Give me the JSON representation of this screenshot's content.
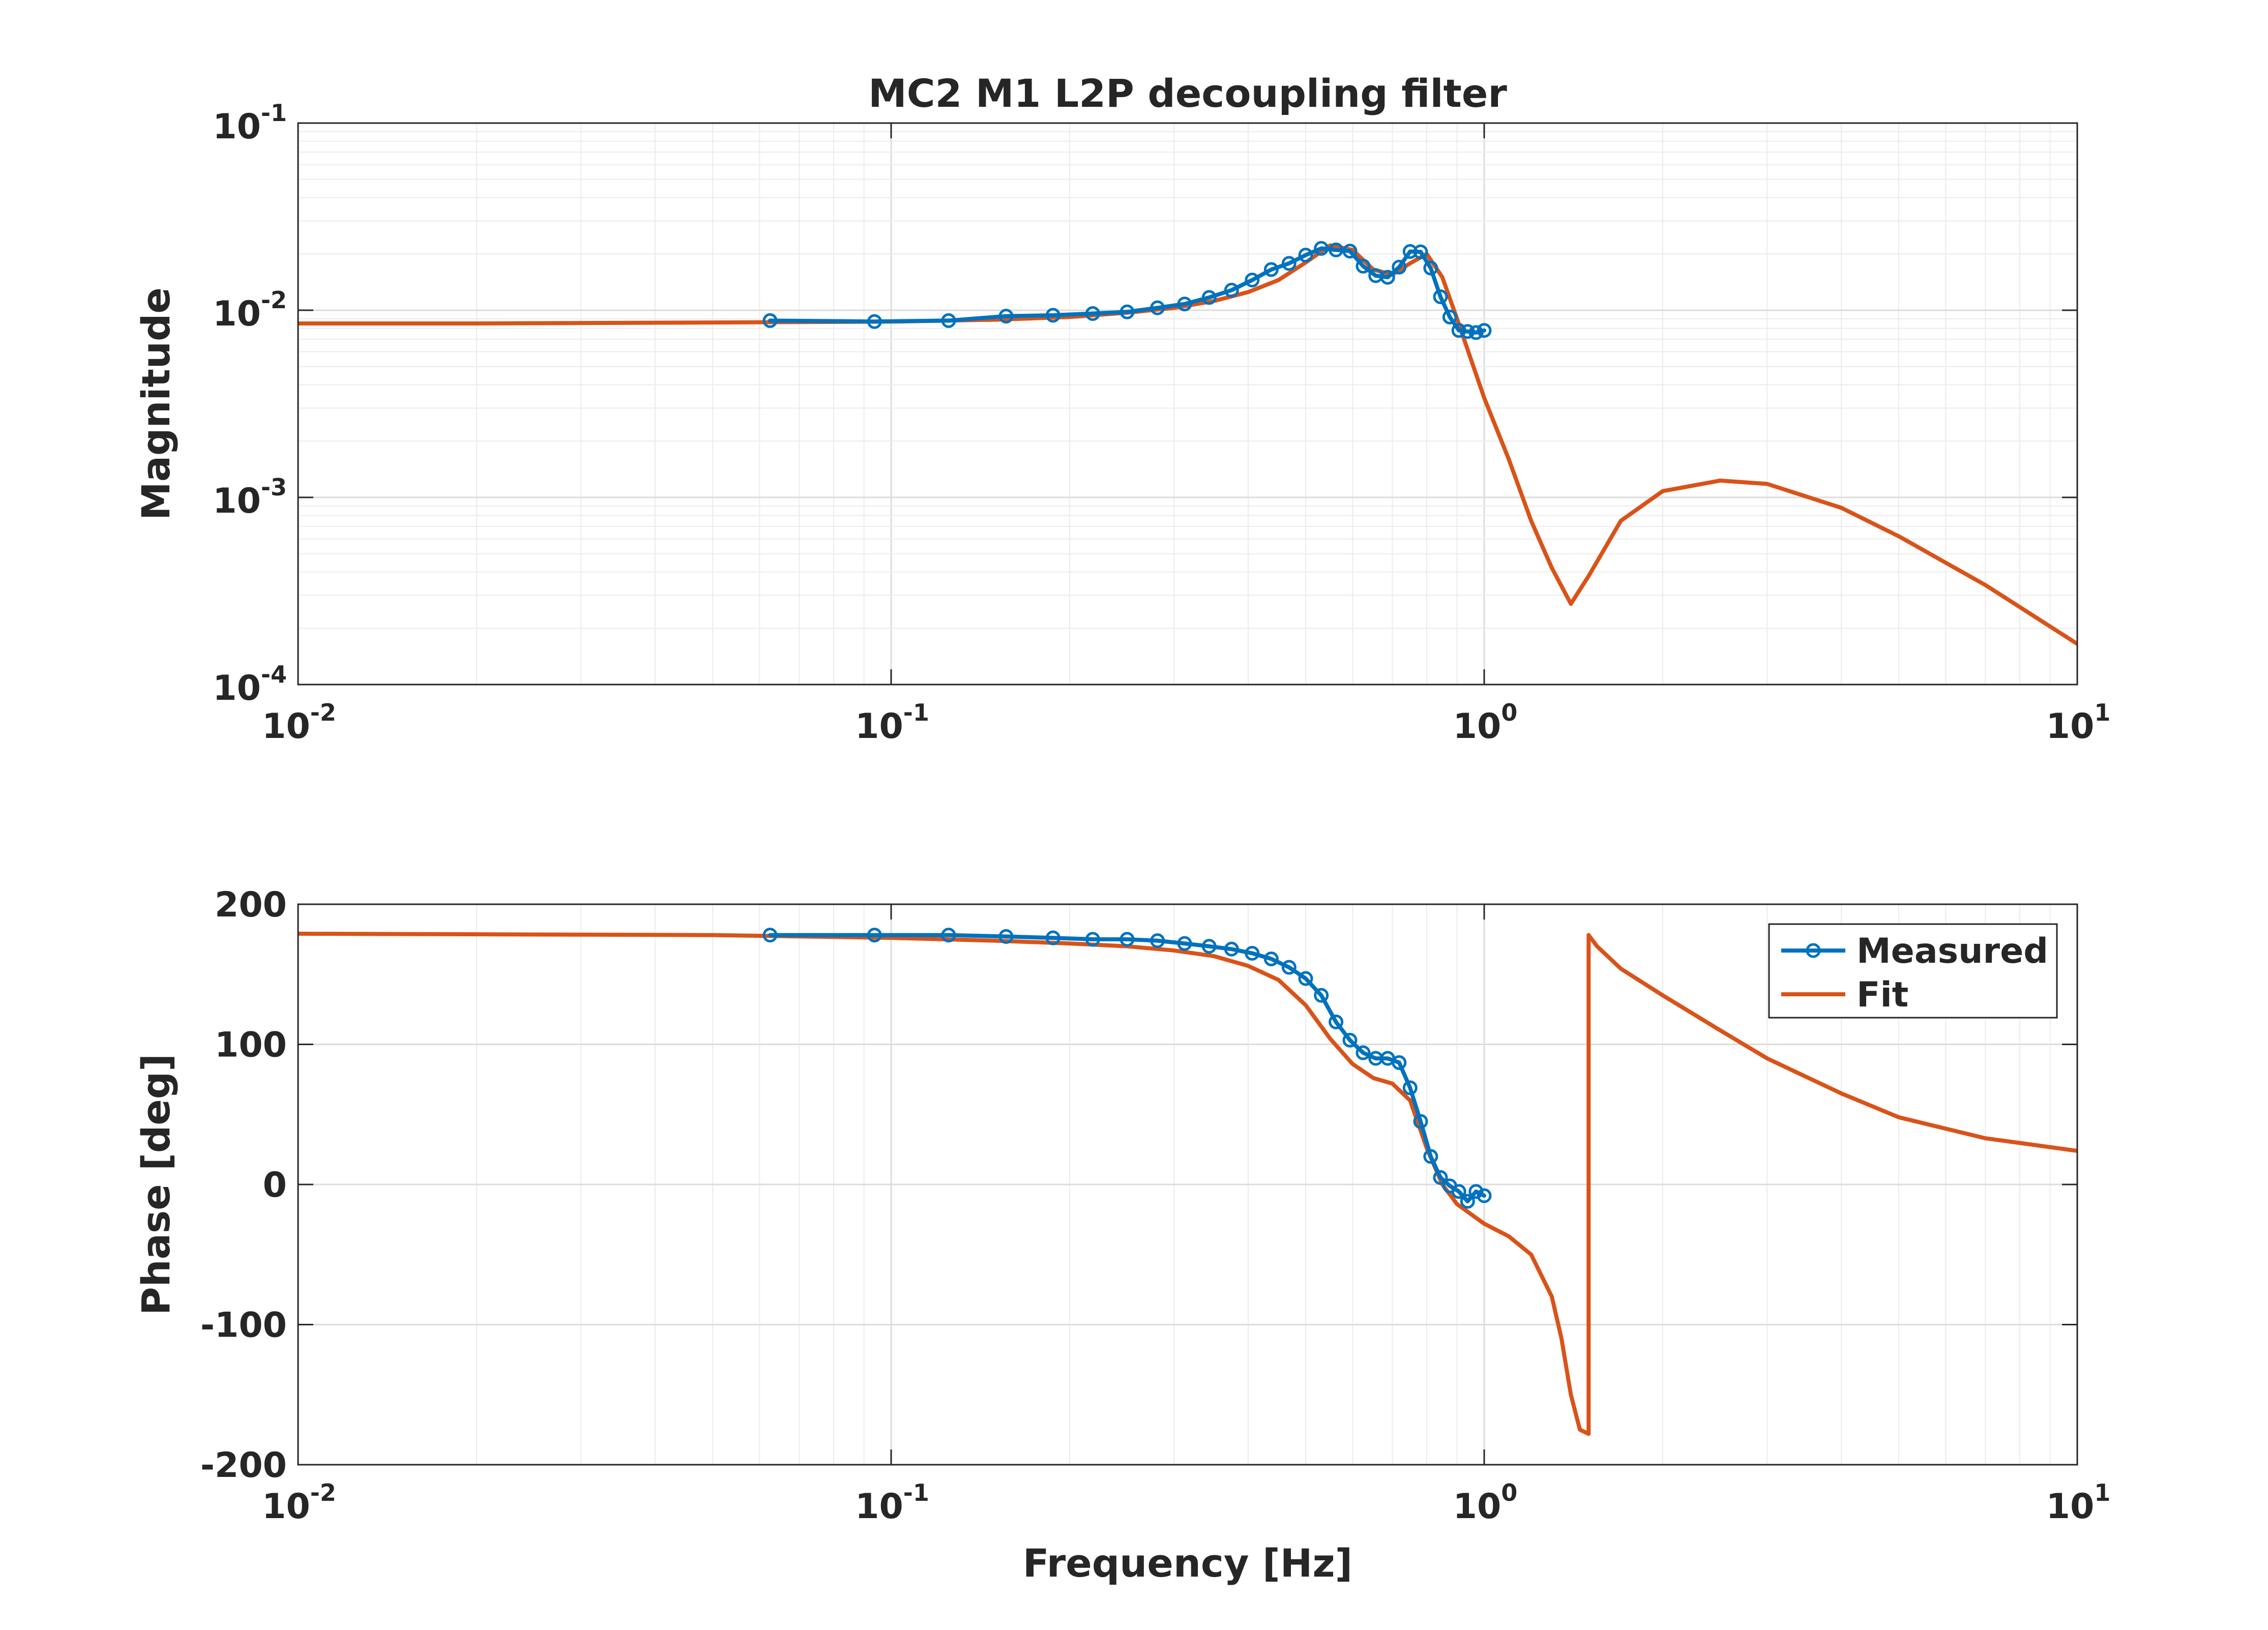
{
  "chart_data": [
    {
      "type": "line",
      "title": "MC2 M1 L2P decoupling filter",
      "xlabel": "",
      "ylabel": "Magnitude",
      "xscale": "log",
      "yscale": "log",
      "xlim": [
        0.01,
        10
      ],
      "ylim": [
        0.0001,
        0.1
      ],
      "xticks": [
        {
          "base": "10",
          "exp": "-2",
          "value": 0.01
        },
        {
          "base": "10",
          "exp": "-1",
          "value": 0.1
        },
        {
          "base": "10",
          "exp": "0",
          "value": 1
        },
        {
          "base": "10",
          "exp": "1",
          "value": 10
        }
      ],
      "yticks": [
        {
          "base": "10",
          "exp": "-4",
          "value": 0.0001
        },
        {
          "base": "10",
          "exp": "-3",
          "value": 0.001
        },
        {
          "base": "10",
          "exp": "-2",
          "value": 0.01
        },
        {
          "base": "10",
          "exp": "-1",
          "value": 0.1
        }
      ],
      "grid": true,
      "series": [
        {
          "name": "Measured",
          "color": "#0072bd",
          "marker": "circle",
          "x": [
            0.0625,
            0.09375,
            0.125,
            0.15625,
            0.1875,
            0.21875,
            0.25,
            0.28125,
            0.3125,
            0.34375,
            0.375,
            0.40625,
            0.4375,
            0.46875,
            0.5,
            0.53125,
            0.5625,
            0.59375,
            0.625,
            0.65625,
            0.6875,
            0.71875,
            0.75,
            0.78125,
            0.8125,
            0.84375,
            0.875,
            0.90625,
            0.9375,
            0.96875,
            1.0
          ],
          "y": [
            0.0088,
            0.0087,
            0.0088,
            0.0093,
            0.0094,
            0.0096,
            0.0098,
            0.0103,
            0.0108,
            0.0117,
            0.0128,
            0.0145,
            0.0165,
            0.0178,
            0.0197,
            0.0214,
            0.021,
            0.0207,
            0.0172,
            0.0153,
            0.015,
            0.017,
            0.0206,
            0.0205,
            0.0168,
            0.0118,
            0.0092,
            0.0078,
            0.0077,
            0.0076,
            0.0078
          ]
        },
        {
          "name": "Fit",
          "color": "#d95319",
          "x": [
            0.01,
            0.02,
            0.05,
            0.1,
            0.15,
            0.2,
            0.25,
            0.3,
            0.35,
            0.4,
            0.45,
            0.5,
            0.55,
            0.6,
            0.65,
            0.7,
            0.75,
            0.8,
            0.85,
            0.9,
            1.0,
            1.1,
            1.2,
            1.3,
            1.4,
            1.5,
            1.7,
            2.0,
            2.5,
            3.0,
            4.0,
            5.0,
            7.0,
            10.0
          ],
          "y": [
            0.0085,
            0.0085,
            0.0086,
            0.0087,
            0.0089,
            0.0092,
            0.0097,
            0.0103,
            0.0112,
            0.0125,
            0.0145,
            0.018,
            0.0222,
            0.021,
            0.0165,
            0.0155,
            0.0178,
            0.02,
            0.015,
            0.009,
            0.0034,
            0.0016,
            0.00075,
            0.00042,
            0.00027,
            0.00038,
            0.00075,
            0.00108,
            0.00123,
            0.00118,
            0.00088,
            0.00062,
            0.00034,
            0.000165
          ]
        }
      ]
    },
    {
      "type": "line",
      "title": "",
      "xlabel": "Frequency [Hz]",
      "ylabel": "Phase [deg]",
      "xscale": "log",
      "yscale": "linear",
      "xlim": [
        0.01,
        10
      ],
      "ylim": [
        -200,
        200
      ],
      "xticks": [
        {
          "base": "10",
          "exp": "-2",
          "value": 0.01
        },
        {
          "base": "10",
          "exp": "-1",
          "value": 0.1
        },
        {
          "base": "10",
          "exp": "0",
          "value": 1
        },
        {
          "base": "10",
          "exp": "1",
          "value": 10
        }
      ],
      "yticks": [
        {
          "label": "-200",
          "value": -200
        },
        {
          "label": "-100",
          "value": -100
        },
        {
          "label": "0",
          "value": 0
        },
        {
          "label": "100",
          "value": 100
        },
        {
          "label": "200",
          "value": 200
        }
      ],
      "grid": true,
      "legend": "top-right",
      "series": [
        {
          "name": "Measured",
          "color": "#0072bd",
          "marker": "circle",
          "x": [
            0.0625,
            0.09375,
            0.125,
            0.15625,
            0.1875,
            0.21875,
            0.25,
            0.28125,
            0.3125,
            0.34375,
            0.375,
            0.40625,
            0.4375,
            0.46875,
            0.5,
            0.53125,
            0.5625,
            0.59375,
            0.625,
            0.65625,
            0.6875,
            0.71875,
            0.75,
            0.78125,
            0.8125,
            0.84375,
            0.875,
            0.90625,
            0.9375,
            0.96875,
            1.0
          ],
          "y": [
            178,
            178,
            178,
            177,
            176,
            175,
            175,
            174,
            172,
            170,
            168,
            165,
            161,
            155,
            147,
            135,
            116,
            103,
            94,
            90,
            90,
            87,
            69,
            45,
            20,
            5,
            -1,
            -5,
            -12,
            -5,
            -8
          ]
        },
        {
          "name": "Fit",
          "color": "#d95319",
          "x": [
            0.01,
            0.05,
            0.1,
            0.15,
            0.2,
            0.25,
            0.3,
            0.35,
            0.4,
            0.45,
            0.5,
            0.55,
            0.6,
            0.65,
            0.7,
            0.75,
            0.8,
            0.85,
            0.9,
            1.0,
            1.1,
            1.2,
            1.3,
            1.35,
            1.4,
            1.45,
            1.5,
            1.5,
            1.55,
            1.7,
            2.0,
            2.5,
            3.0,
            4.0,
            5.0,
            7.0,
            10.0
          ],
          "y": [
            179,
            178,
            176,
            174,
            172,
            170,
            167,
            163,
            156,
            146,
            128,
            104,
            86,
            76,
            72,
            60,
            26,
            0,
            -14,
            -28,
            -37,
            -50,
            -80,
            -110,
            -150,
            -175,
            -178,
            178,
            170,
            154,
            135,
            110,
            90,
            65,
            48,
            33,
            24
          ]
        }
      ]
    }
  ]
}
